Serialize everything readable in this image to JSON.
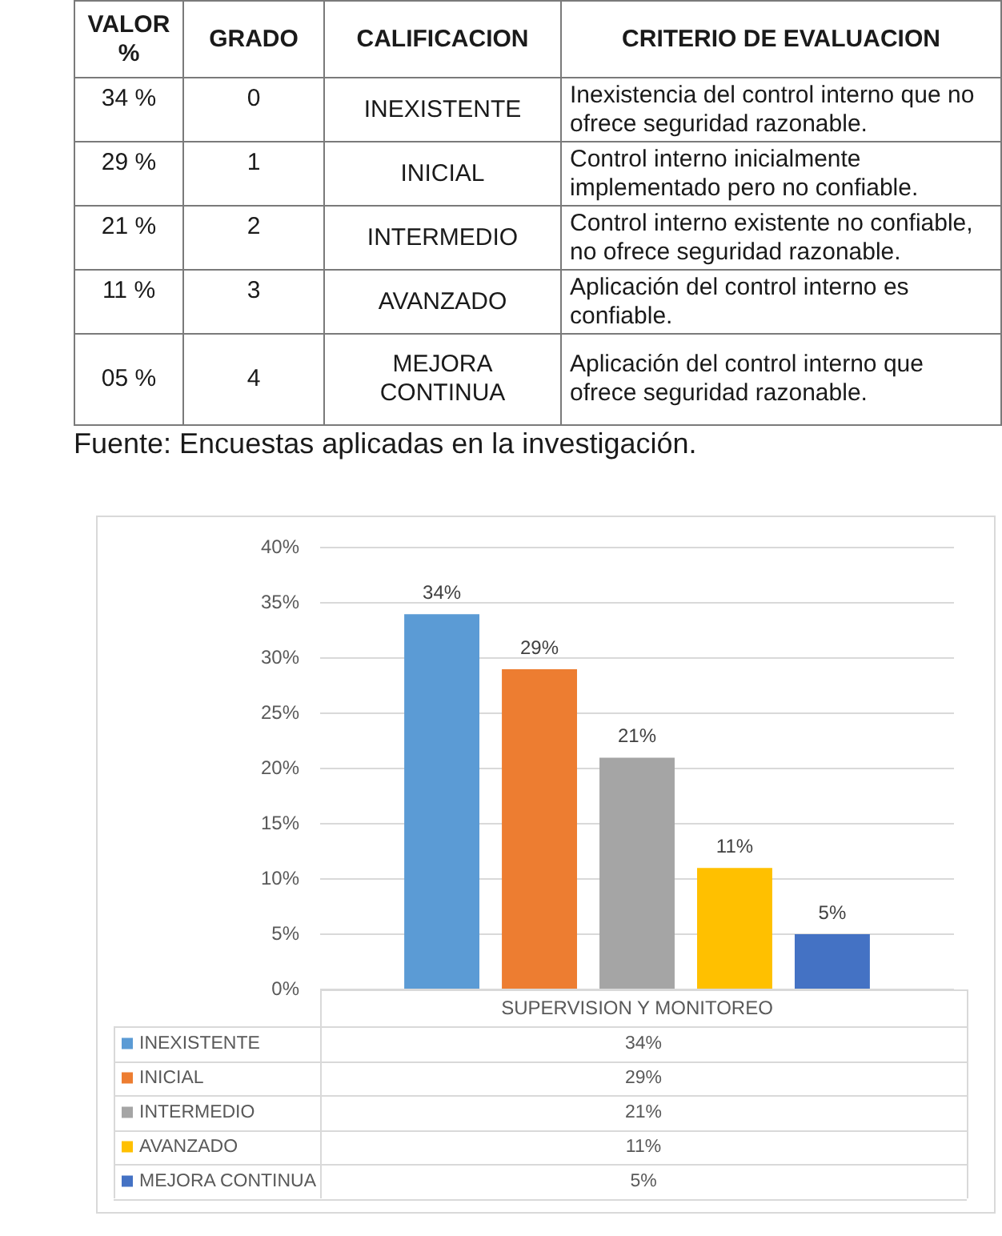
{
  "chart_data": [
    {
      "type": "other",
      "categories": [
        "VALOR %",
        "GRADO",
        "CALIFICACION",
        "CRITERIO DE EVALUACION"
      ],
      "cell_labels": [
        [
          "34 %",
          "0",
          "INEXISTENTE",
          "Inexistencia del control interno que no ofrece seguridad razonable."
        ],
        [
          "29 %",
          "1",
          "INICIAL",
          "Control interno inicialmente implementado pero no confiable."
        ],
        [
          "21 %",
          "2",
          "INTERMEDIO",
          "Control interno existente no confiable, no ofrece seguridad razonable."
        ],
        [
          "11 %",
          "3",
          "AVANZADO",
          "Aplicación del control interno es confiable."
        ],
        [
          "05 %",
          "4",
          "MEJORA CONTINUA",
          "Aplicación del control interno que ofrece seguridad razonable."
        ]
      ],
      "annotations": [
        "Fuente: Encuestas aplicadas en la investigación."
      ]
    },
    {
      "type": "bar",
      "categories": [
        "SUPERVISION Y MONITOREO"
      ],
      "series": [
        {
          "name": "INEXISTENTE",
          "color": "#5b9bd5",
          "values": [
            34
          ],
          "value_labels": [
            "34%"
          ]
        },
        {
          "name": "INICIAL",
          "color": "#ed7d31",
          "values": [
            29
          ],
          "value_labels": [
            "29%"
          ]
        },
        {
          "name": "INTERMEDIO",
          "color": "#a5a5a5",
          "values": [
            21
          ],
          "value_labels": [
            "21%"
          ]
        },
        {
          "name": "AVANZADO",
          "color": "#ffc000",
          "values": [
            11
          ],
          "value_labels": [
            "11%"
          ]
        },
        {
          "name": "MEJORA CONTINUA",
          "color": "#4472c4",
          "values": [
            5
          ],
          "value_labels": [
            "5%"
          ]
        }
      ],
      "ylim": [
        0,
        40
      ],
      "yticks": [
        {
          "value": 0,
          "label": "0%"
        },
        {
          "value": 5,
          "label": "5%"
        },
        {
          "value": 10,
          "label": "10%"
        },
        {
          "value": 15,
          "label": "15%"
        },
        {
          "value": 20,
          "label": "20%"
        },
        {
          "value": 25,
          "label": "25%"
        },
        {
          "value": 30,
          "label": "30%"
        },
        {
          "value": 35,
          "label": "35%"
        },
        {
          "value": 40,
          "label": "40%"
        }
      ],
      "grid": "y",
      "legend": "bottom"
    }
  ]
}
